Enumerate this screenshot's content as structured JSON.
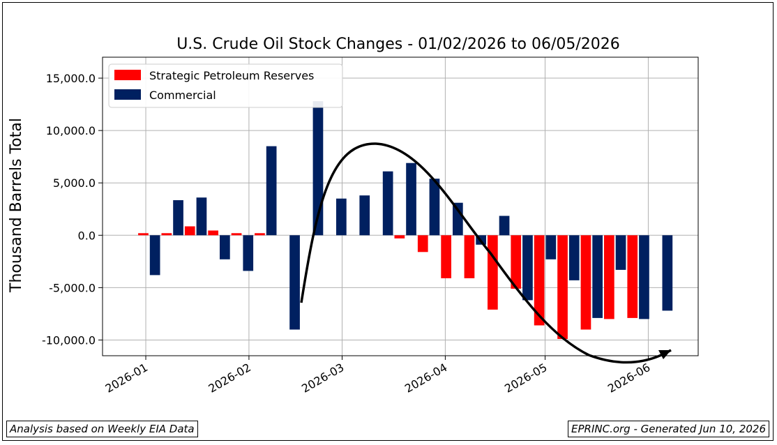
{
  "chart_data": {
    "type": "bar",
    "title": "U.S. Crude Oil Stock Changes - 01/02/2026 to 06/05/2026",
    "ylabel": "Thousand Barrels Total",
    "xlabel": "",
    "ylim": [
      -11500,
      17000
    ],
    "yticks": [
      -10000,
      -5000,
      0,
      5000,
      10000,
      15000
    ],
    "ytick_labels": [
      "-10,000.0",
      "-5,000.0",
      "0.0",
      "5,000.0",
      "10,000.0",
      "15,000.0"
    ],
    "xticks": [
      "2026-01-01",
      "2026-02-01",
      "2026-03-01",
      "2026-04-01",
      "2026-05-01",
      "2026-06-01"
    ],
    "xtick_labels": [
      "2026-01",
      "2026-02",
      "2026-03",
      "2026-04",
      "2026-05",
      "2026-06"
    ],
    "x_range": [
      "2025-12-19",
      "2026-06-16"
    ],
    "grid": true,
    "legend_position": "top-left",
    "weeks": [
      "2026-01-02",
      "2026-01-09",
      "2026-01-16",
      "2026-01-23",
      "2026-01-30",
      "2026-02-06",
      "2026-02-13",
      "2026-02-20",
      "2026-02-27",
      "2026-03-06",
      "2026-03-13",
      "2026-03-20",
      "2026-03-27",
      "2026-04-03",
      "2026-04-10",
      "2026-04-17",
      "2026-04-24",
      "2026-05-01",
      "2026-05-08",
      "2026-05-15",
      "2026-05-22",
      "2026-05-29",
      "2026-06-05"
    ],
    "series": [
      {
        "name": "Strategic Petroleum Reserves",
        "color": "#ff0000",
        "values": [
          200,
          200,
          850,
          450,
          200,
          200,
          0,
          0,
          0,
          0,
          0,
          -300,
          -1600,
          -4100,
          -4100,
          -7100,
          -5100,
          -8600,
          -9900,
          -9000,
          -8000,
          -7900,
          0
        ]
      },
      {
        "name": "Commercial",
        "color": "#002060",
        "values": [
          -3800,
          3350,
          3600,
          -2300,
          -3400,
          8500,
          -9000,
          12800,
          3500,
          3800,
          6100,
          6900,
          5400,
          3100,
          -900,
          1850,
          -6200,
          -2300,
          -4300,
          -7900,
          -3300,
          -8000,
          -7200
        ]
      }
    ]
  },
  "footer": {
    "left": "Analysis based on Weekly EIA Data",
    "right": "EPRINC.org - Generated Jun 10, 2026"
  }
}
